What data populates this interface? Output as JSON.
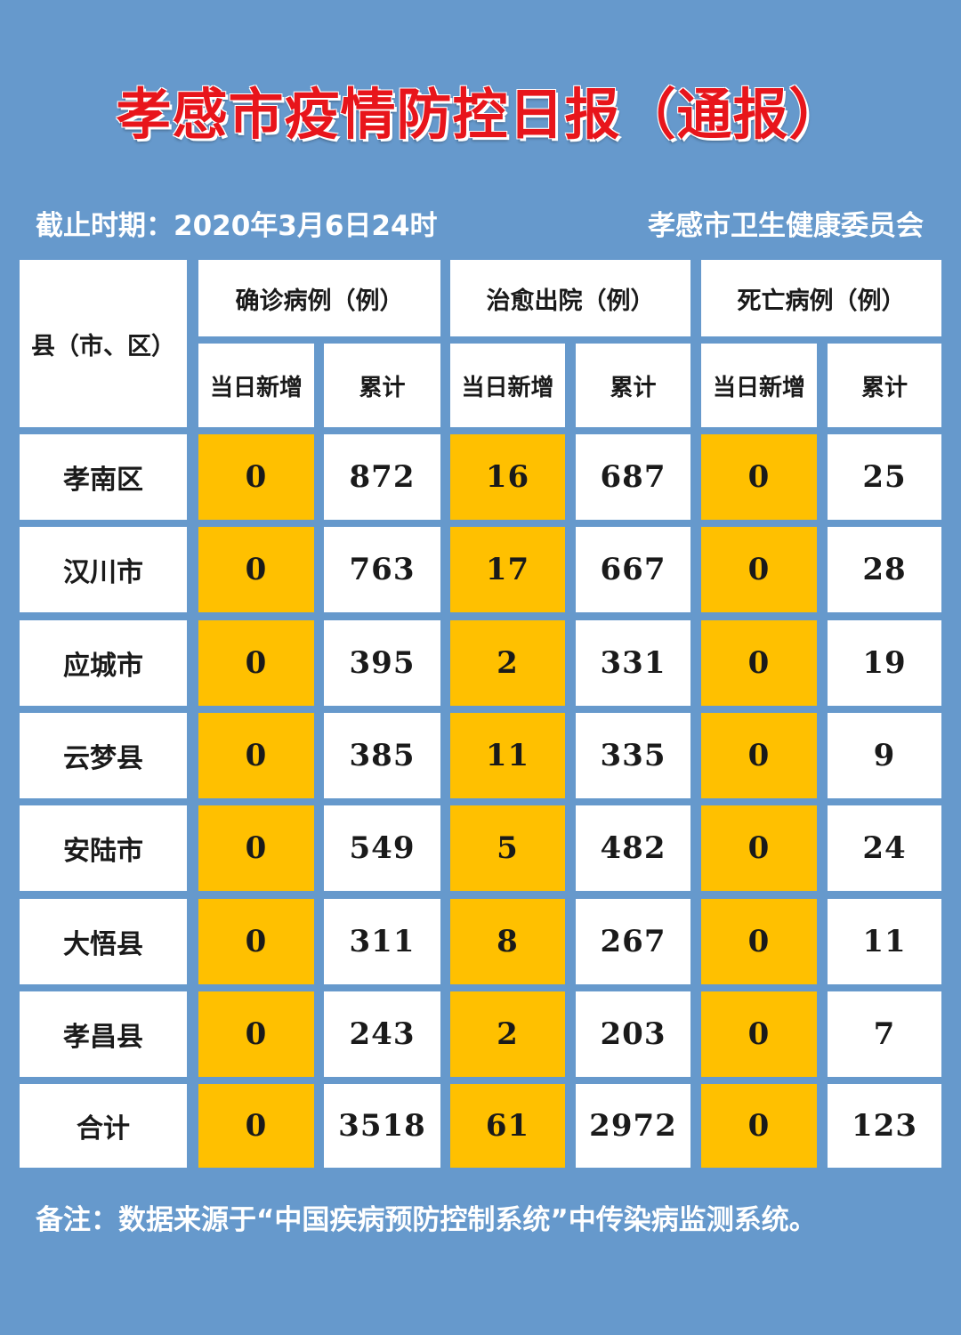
{
  "title": "孝感市疫情防控日报（通报）",
  "cutoff": "截止时期：2020年3月6日24时",
  "issuer": "孝感市卫生健康委员会",
  "table": {
    "region_header": "县（市、区）",
    "groups": [
      "确诊病例（例）",
      "治愈出院（例）",
      "死亡病例（例）"
    ],
    "subheaders": [
      "当日新增",
      "累计",
      "当日新增",
      "累计",
      "当日新增",
      "累计"
    ],
    "rows": [
      {
        "name": "孝南区",
        "values": [
          "0",
          "872",
          "16",
          "687",
          "0",
          "25"
        ]
      },
      {
        "name": "汉川市",
        "values": [
          "0",
          "763",
          "17",
          "667",
          "0",
          "28"
        ]
      },
      {
        "name": "应城市",
        "values": [
          "0",
          "395",
          "2",
          "331",
          "0",
          "19"
        ]
      },
      {
        "name": "云梦县",
        "values": [
          "0",
          "385",
          "11",
          "335",
          "0",
          "9"
        ]
      },
      {
        "name": "安陆市",
        "values": [
          "0",
          "549",
          "5",
          "482",
          "0",
          "24"
        ]
      },
      {
        "name": "大悟县",
        "values": [
          "0",
          "311",
          "8",
          "267",
          "0",
          "11"
        ]
      },
      {
        "name": "孝昌县",
        "values": [
          "0",
          "243",
          "2",
          "203",
          "0",
          "7"
        ]
      },
      {
        "name": "合计",
        "values": [
          "0",
          "3518",
          "61",
          "2972",
          "0",
          "123"
        ]
      }
    ]
  },
  "note": "备注：数据来源于“中国疾病预防控制系统”中传染病监测系统。",
  "colors": {
    "background": "#6699cc",
    "highlight": "#ffc000",
    "title": "#e8151b"
  }
}
